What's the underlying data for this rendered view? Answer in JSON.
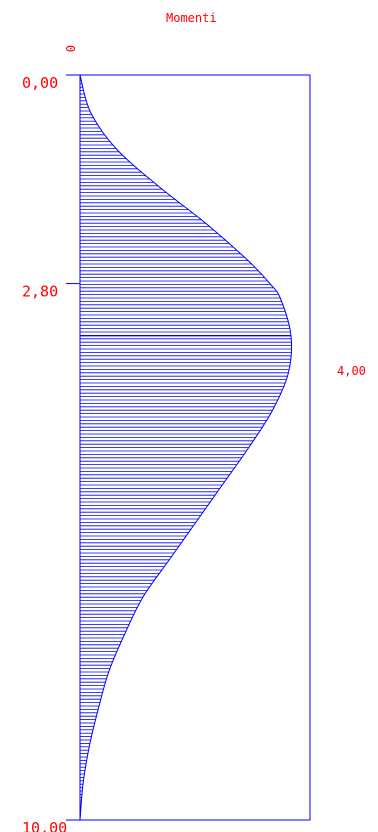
{
  "title": "Momenti",
  "top_value": "0",
  "max_value_label": "4,00",
  "colors": {
    "diagram": "#0000ff",
    "labels": "#ff0000",
    "background": "#ffffff"
  },
  "chart_data": {
    "type": "area",
    "orientation": "vertical",
    "title": "Momenti",
    "y_ticks": [
      "0,00",
      "2,80",
      "10,00"
    ],
    "y_range": [
      0,
      10
    ],
    "x_range": [
      0,
      4.0
    ],
    "peak": {
      "position": 3.5,
      "value": 4.0
    },
    "points": [
      {
        "y": 0.0,
        "x": 0.0
      },
      {
        "y": 0.5,
        "x": 0.2
      },
      {
        "y": 1.0,
        "x": 0.7
      },
      {
        "y": 1.5,
        "x": 1.5
      },
      {
        "y": 2.0,
        "x": 2.4
      },
      {
        "y": 2.5,
        "x": 3.2
      },
      {
        "y": 2.8,
        "x": 3.6
      },
      {
        "y": 3.0,
        "x": 3.8
      },
      {
        "y": 3.5,
        "x": 4.0
      },
      {
        "y": 4.0,
        "x": 3.95
      },
      {
        "y": 4.5,
        "x": 3.65
      },
      {
        "y": 5.0,
        "x": 3.2
      },
      {
        "y": 5.5,
        "x": 2.7
      },
      {
        "y": 6.0,
        "x": 2.2
      },
      {
        "y": 6.5,
        "x": 1.7
      },
      {
        "y": 7.0,
        "x": 1.2
      },
      {
        "y": 7.5,
        "x": 0.85
      },
      {
        "y": 8.0,
        "x": 0.55
      },
      {
        "y": 8.5,
        "x": 0.35
      },
      {
        "y": 9.0,
        "x": 0.18
      },
      {
        "y": 9.5,
        "x": 0.06
      },
      {
        "y": 10.0,
        "x": 0.0
      }
    ],
    "hatch": true,
    "grid": false
  }
}
